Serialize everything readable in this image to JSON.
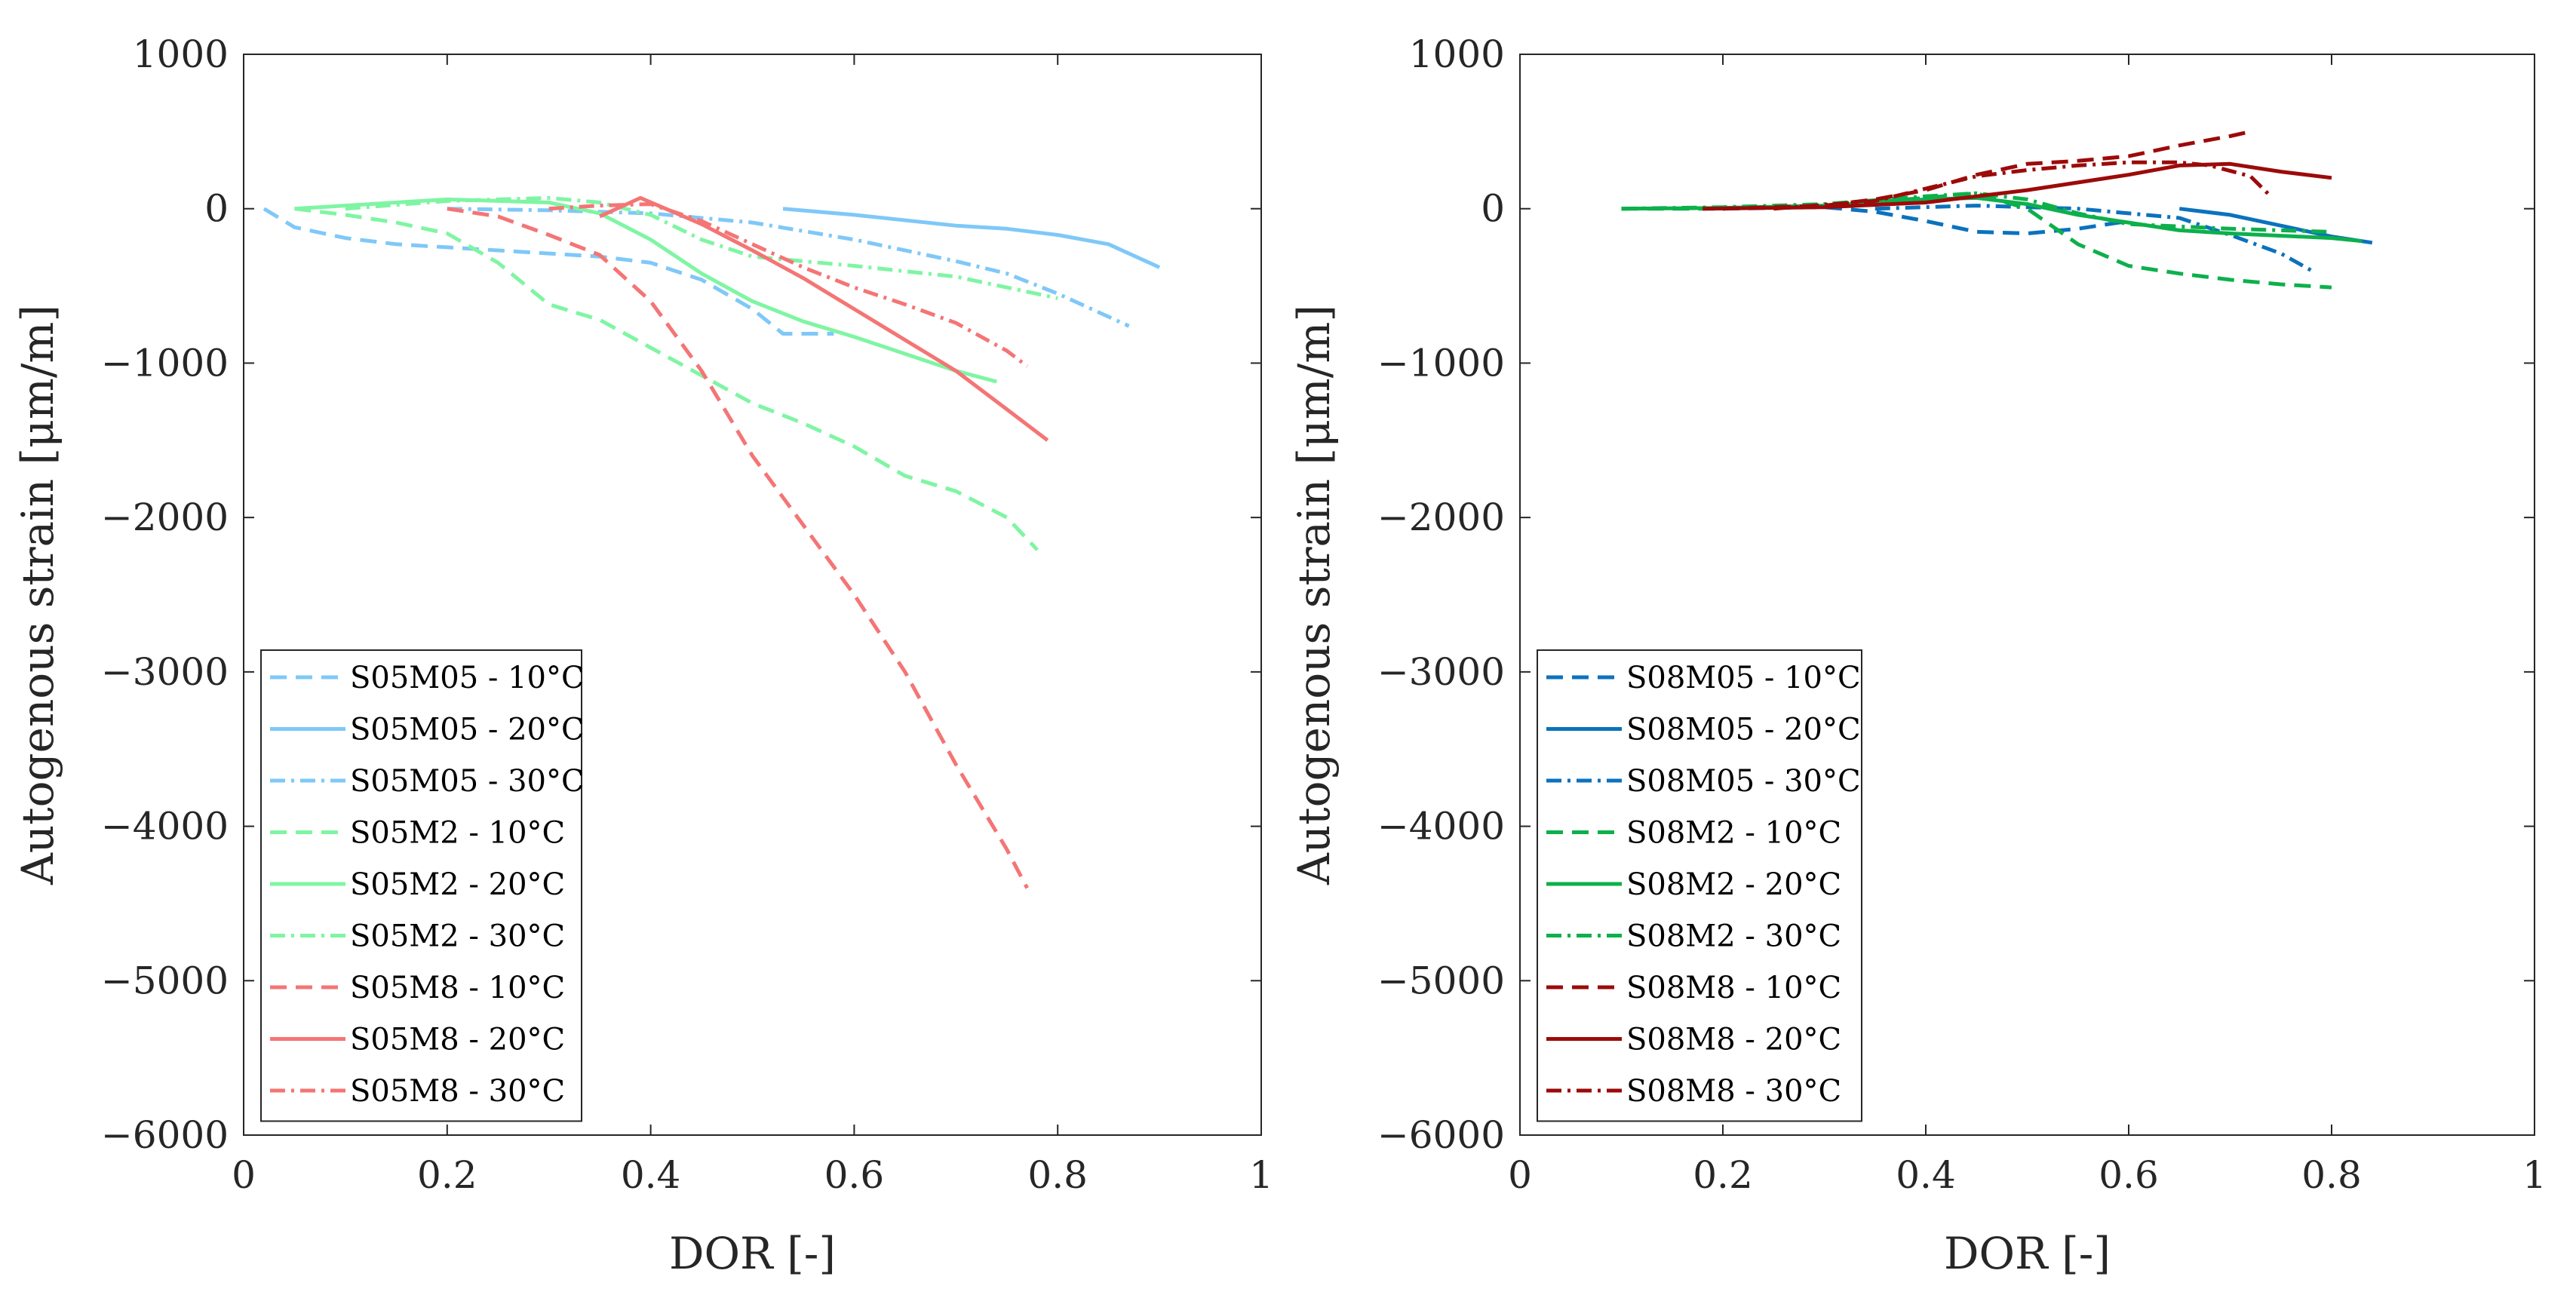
{
  "chart_data": [
    {
      "type": "line",
      "xlabel": "DOR [-]",
      "ylabel": "Autogenous strain [μm/m]",
      "xlim": [
        0,
        1
      ],
      "ylim": [
        -6000,
        1000
      ],
      "xticks": [
        0,
        0.2,
        0.4,
        0.6,
        0.8,
        1
      ],
      "xtick_labels": [
        "0",
        "0.2",
        "0.4",
        "0.6",
        "0.8",
        "1"
      ],
      "yticks": [
        1000,
        0,
        -1000,
        -2000,
        -3000,
        -4000,
        -5000,
        -6000
      ],
      "ytick_labels": [
        "1000",
        "0",
        "−1000",
        "−2000",
        "−3000",
        "−4000",
        "−5000",
        "−6000"
      ],
      "legend_location": "bottom-left",
      "series": [
        {
          "name": "S05M05 - 10°C",
          "color": "#7fc8f8",
          "style": "dashed",
          "x": [
            0.02,
            0.05,
            0.1,
            0.15,
            0.2,
            0.25,
            0.3,
            0.35,
            0.4,
            0.45,
            0.5,
            0.53,
            0.58
          ],
          "y": [
            0,
            -120,
            -190,
            -230,
            -250,
            -270,
            -290,
            -310,
            -350,
            -460,
            -650,
            -810,
            -810
          ]
        },
        {
          "name": "S05M05 - 20°C",
          "color": "#7fc8f8",
          "style": "solid",
          "x": [
            0.53,
            0.6,
            0.7,
            0.75,
            0.8,
            0.85,
            0.9
          ],
          "y": [
            0,
            -40,
            -110,
            -130,
            -170,
            -230,
            -380
          ]
        },
        {
          "name": "S05M05 - 30°C",
          "color": "#7fc8f8",
          "style": "dashdot",
          "x": [
            0.2,
            0.3,
            0.4,
            0.5,
            0.6,
            0.7,
            0.75,
            0.8,
            0.87
          ],
          "y": [
            0,
            -10,
            -30,
            -90,
            -200,
            -340,
            -420,
            -550,
            -760
          ]
        },
        {
          "name": "S05M2 - 10°C",
          "color": "#7ff5a3",
          "style": "dashed",
          "x": [
            0.05,
            0.1,
            0.15,
            0.2,
            0.25,
            0.3,
            0.35,
            0.4,
            0.45,
            0.5,
            0.55,
            0.6,
            0.65,
            0.7,
            0.75,
            0.78
          ],
          "y": [
            0,
            -40,
            -90,
            -160,
            -350,
            -620,
            -720,
            -900,
            -1080,
            -1260,
            -1390,
            -1540,
            -1730,
            -1830,
            -2000,
            -2210
          ]
        },
        {
          "name": "S05M2 - 20°C",
          "color": "#7ff5a3",
          "style": "solid",
          "x": [
            0.05,
            0.1,
            0.2,
            0.3,
            0.35,
            0.4,
            0.45,
            0.5,
            0.55,
            0.6,
            0.65,
            0.7,
            0.74
          ],
          "y": [
            0,
            20,
            60,
            40,
            -30,
            -200,
            -420,
            -600,
            -730,
            -830,
            -940,
            -1050,
            -1120
          ]
        },
        {
          "name": "S05M2 - 30°C",
          "color": "#7ff5a3",
          "style": "dashdot",
          "x": [
            0.1,
            0.2,
            0.3,
            0.35,
            0.4,
            0.45,
            0.5,
            0.6,
            0.7,
            0.8
          ],
          "y": [
            0,
            50,
            70,
            40,
            -40,
            -200,
            -310,
            -370,
            -440,
            -580
          ]
        },
        {
          "name": "S05M8 - 10°C",
          "color": "#f47575",
          "style": "dashed",
          "x": [
            0.2,
            0.25,
            0.3,
            0.35,
            0.4,
            0.45,
            0.5,
            0.55,
            0.6,
            0.65,
            0.7,
            0.75,
            0.77
          ],
          "y": [
            0,
            -50,
            -170,
            -300,
            -600,
            -1050,
            -1600,
            -2050,
            -2500,
            -3000,
            -3600,
            -4150,
            -4400
          ]
        },
        {
          "name": "S05M8 - 20°C",
          "color": "#f47575",
          "style": "solid",
          "x": [
            0.35,
            0.39,
            0.45,
            0.5,
            0.55,
            0.6,
            0.65,
            0.7,
            0.75,
            0.79
          ],
          "y": [
            -50,
            70,
            -100,
            -270,
            -450,
            -650,
            -850,
            -1050,
            -1300,
            -1500
          ]
        },
        {
          "name": "S05M8 - 30°C",
          "color": "#f47575",
          "style": "dashdot",
          "x": [
            0.3,
            0.35,
            0.4,
            0.45,
            0.5,
            0.55,
            0.6,
            0.65,
            0.7,
            0.75,
            0.77
          ],
          "y": [
            0,
            20,
            30,
            -80,
            -230,
            -380,
            -510,
            -620,
            -740,
            -920,
            -1020
          ]
        }
      ]
    },
    {
      "type": "line",
      "xlabel": "DOR [-]",
      "ylabel": "Autogenous strain [μm/m]",
      "xlim": [
        0,
        1
      ],
      "ylim": [
        -6000,
        1000
      ],
      "xticks": [
        0,
        0.2,
        0.4,
        0.6,
        0.8,
        1
      ],
      "xtick_labels": [
        "0",
        "0.2",
        "0.4",
        "0.6",
        "0.8",
        "1"
      ],
      "yticks": [
        1000,
        0,
        -1000,
        -2000,
        -3000,
        -4000,
        -5000,
        -6000
      ],
      "ytick_labels": [
        "1000",
        "0",
        "−1000",
        "−2000",
        "−3000",
        "−4000",
        "−5000",
        "−6000"
      ],
      "legend_location": "bottom-left",
      "series": [
        {
          "name": "S08M05 - 10°C",
          "color": "#0b72bd",
          "style": "dashed",
          "x": [
            0.2,
            0.3,
            0.35,
            0.4,
            0.45,
            0.5,
            0.55,
            0.6
          ],
          "y": [
            0,
            10,
            -20,
            -80,
            -150,
            -160,
            -130,
            -80
          ]
        },
        {
          "name": "S08M05 - 20°C",
          "color": "#0b72bd",
          "style": "solid",
          "x": [
            0.65,
            0.7,
            0.75,
            0.8,
            0.84
          ],
          "y": [
            0,
            -40,
            -110,
            -180,
            -220
          ]
        },
        {
          "name": "S08M05 - 30°C",
          "color": "#0b72bd",
          "style": "dashdot",
          "x": [
            0.35,
            0.45,
            0.55,
            0.65,
            0.7,
            0.75,
            0.78
          ],
          "y": [
            0,
            20,
            0,
            -60,
            -170,
            -290,
            -400
          ]
        },
        {
          "name": "S08M2 - 10°C",
          "color": "#0db04b",
          "style": "dashed",
          "x": [
            0.1,
            0.2,
            0.3,
            0.4,
            0.45,
            0.5,
            0.55,
            0.6,
            0.65,
            0.7,
            0.75,
            0.8
          ],
          "y": [
            0,
            0,
            20,
            70,
            100,
            0,
            -230,
            -370,
            -420,
            -460,
            -490,
            -510
          ]
        },
        {
          "name": "S08M2 - 20°C",
          "color": "#0db04b",
          "style": "solid",
          "x": [
            0.1,
            0.2,
            0.3,
            0.4,
            0.45,
            0.5,
            0.55,
            0.6,
            0.65,
            0.7,
            0.8,
            0.83
          ],
          "y": [
            0,
            5,
            20,
            60,
            70,
            30,
            -40,
            -90,
            -140,
            -160,
            -190,
            -210
          ]
        },
        {
          "name": "S08M2 - 30°C",
          "color": "#0db04b",
          "style": "dashdot",
          "x": [
            0.1,
            0.2,
            0.3,
            0.4,
            0.45,
            0.5,
            0.55,
            0.6,
            0.7,
            0.8
          ],
          "y": [
            0,
            10,
            30,
            80,
            100,
            60,
            -30,
            -100,
            -130,
            -150
          ]
        },
        {
          "name": "S08M8 - 10°C",
          "color": "#9c0a0a",
          "style": "dashed",
          "x": [
            0.2,
            0.3,
            0.35,
            0.4,
            0.45,
            0.5,
            0.55,
            0.6,
            0.65,
            0.7,
            0.72
          ],
          "y": [
            0,
            20,
            60,
            120,
            220,
            290,
            310,
            340,
            410,
            470,
            500
          ]
        },
        {
          "name": "S08M8 - 20°C",
          "color": "#9c0a0a",
          "style": "solid",
          "x": [
            0.18,
            0.3,
            0.4,
            0.5,
            0.6,
            0.65,
            0.7,
            0.75,
            0.8
          ],
          "y": [
            0,
            10,
            40,
            120,
            220,
            280,
            290,
            240,
            200
          ]
        },
        {
          "name": "S08M8 - 30°C",
          "color": "#9c0a0a",
          "style": "dashdot",
          "x": [
            0.25,
            0.35,
            0.4,
            0.45,
            0.5,
            0.55,
            0.6,
            0.65,
            0.68,
            0.72,
            0.74
          ],
          "y": [
            0,
            50,
            130,
            210,
            250,
            280,
            300,
            300,
            280,
            210,
            80
          ]
        }
      ]
    }
  ]
}
